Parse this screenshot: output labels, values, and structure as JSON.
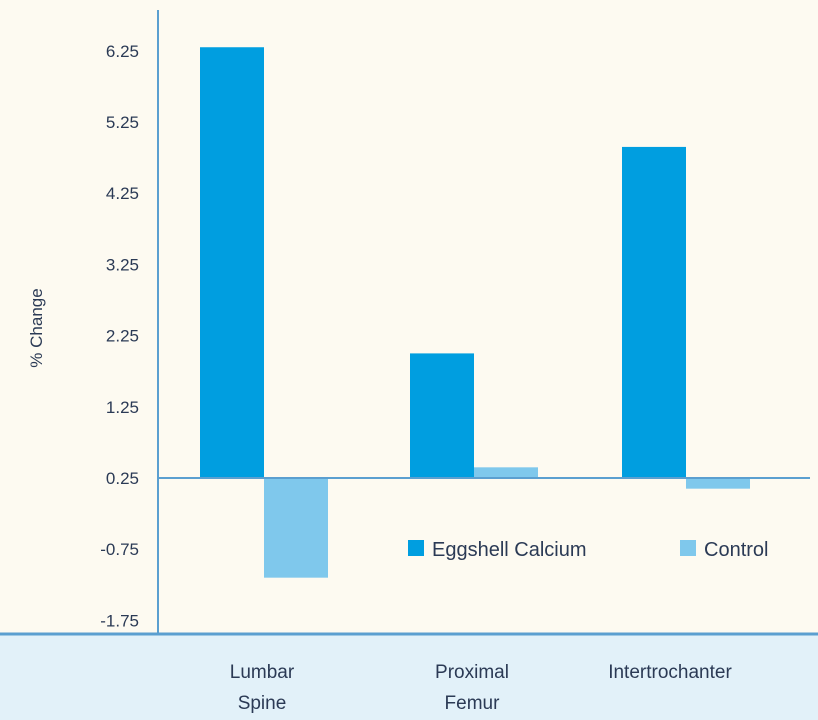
{
  "chart_data": {
    "type": "bar",
    "title": "",
    "xlabel": "",
    "ylabel": "% Change",
    "ylim": [
      -2.0,
      6.5
    ],
    "yticks": [
      "6.25",
      "5.25",
      "4.25",
      "3.25",
      "2.25",
      "1.25",
      "0.25",
      "-0.75",
      "-1.75"
    ],
    "categories": [
      [
        "Lumbar",
        "Spine"
      ],
      [
        "Proximal",
        "Femur"
      ],
      [
        "Intertrochanter"
      ]
    ],
    "baseline": 0.25,
    "series": [
      {
        "name": "Eggshell Calcium",
        "color": "#009ee0",
        "values": [
          6.3,
          2.0,
          4.9
        ]
      },
      {
        "name": "Control",
        "color": "#7fc8ec",
        "values": [
          -1.15,
          0.4,
          0.1
        ]
      }
    ],
    "legend_position": "inside-bottom-right",
    "grid": false
  },
  "colors": {
    "background": "#fdfaf1",
    "category_band": "#e2f1f9",
    "axis": "#5b9fd0",
    "text": "#2b3a55"
  }
}
